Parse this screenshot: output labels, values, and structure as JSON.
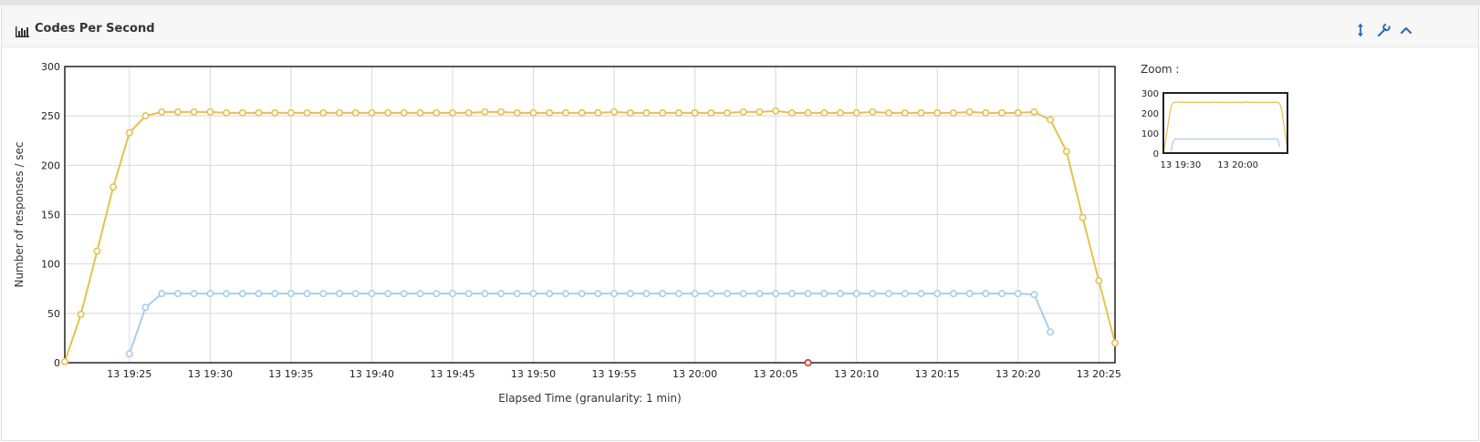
{
  "panel": {
    "title": "Codes Per Second",
    "icons": [
      "bar-chart-icon",
      "expand-vertical-icon",
      "wrench-icon",
      "chevron-up-icon"
    ]
  },
  "zoom": {
    "label": "Zoom :"
  },
  "colors": {
    "series_2xx": "#e8c050",
    "series_other": "#a9cde9",
    "marker_red": "#d03030",
    "frame": "#222222",
    "grid": "#d8d8d8"
  },
  "chart_data": {
    "type": "line",
    "xlabel": "Elapsed Time (granularity: 1 min)",
    "ylabel": "Number of responses / sec",
    "ylim": [
      0,
      300
    ],
    "yticks": [
      0,
      50,
      100,
      150,
      200,
      250,
      300
    ],
    "xlim": [
      "13 19:21",
      "13 20:26"
    ],
    "xticks": [
      "13 19:25",
      "13 19:30",
      "13 19:35",
      "13 19:40",
      "13 19:45",
      "13 19:50",
      "13 19:55",
      "13 20:00",
      "13 20:05",
      "13 20:10",
      "13 20:15",
      "13 20:20",
      "13 20:25"
    ],
    "grid": true,
    "series": [
      {
        "color": "#e8c050",
        "x": [
          "13 19:21",
          "13 19:22",
          "13 19:23",
          "13 19:24",
          "13 19:25",
          "13 19:26",
          "13 19:27",
          "13 19:28",
          "13 19:29",
          "13 19:30",
          "13 19:31",
          "13 19:32",
          "13 19:33",
          "13 19:34",
          "13 19:35",
          "13 19:36",
          "13 19:37",
          "13 19:38",
          "13 19:39",
          "13 19:40",
          "13 19:41",
          "13 19:42",
          "13 19:43",
          "13 19:44",
          "13 19:45",
          "13 19:46",
          "13 19:47",
          "13 19:48",
          "13 19:49",
          "13 19:50",
          "13 19:51",
          "13 19:52",
          "13 19:53",
          "13 19:54",
          "13 19:55",
          "13 19:56",
          "13 19:57",
          "13 19:58",
          "13 19:59",
          "13 20:00",
          "13 20:01",
          "13 20:02",
          "13 20:03",
          "13 20:04",
          "13 20:05",
          "13 20:06",
          "13 20:07",
          "13 20:08",
          "13 20:09",
          "13 20:10",
          "13 20:11",
          "13 20:12",
          "13 20:13",
          "13 20:14",
          "13 20:15",
          "13 20:16",
          "13 20:17",
          "13 20:18",
          "13 20:19",
          "13 20:20",
          "13 20:21",
          "13 20:22",
          "13 20:23",
          "13 20:24",
          "13 20:25",
          "13 20:26"
        ],
        "values": [
          1,
          49,
          113,
          178,
          233,
          250,
          254,
          254,
          254,
          254,
          253,
          253,
          253,
          253,
          253,
          253,
          253,
          253,
          253,
          253,
          253,
          253,
          253,
          253,
          253,
          253,
          254,
          254,
          253,
          253,
          253,
          253,
          253,
          253,
          254,
          253,
          253,
          253,
          253,
          253,
          253,
          253,
          254,
          254,
          255,
          253,
          253,
          253,
          253,
          253,
          254,
          253,
          253,
          253,
          253,
          253,
          254,
          253,
          253,
          253,
          254,
          246,
          214,
          147,
          83,
          20
        ]
      },
      {
        "color": "#a9cde9",
        "x": [
          "13 19:25",
          "13 19:26",
          "13 19:27",
          "13 19:28",
          "13 19:29",
          "13 19:30",
          "13 19:31",
          "13 19:32",
          "13 19:33",
          "13 19:34",
          "13 19:35",
          "13 19:36",
          "13 19:37",
          "13 19:38",
          "13 19:39",
          "13 19:40",
          "13 19:41",
          "13 19:42",
          "13 19:43",
          "13 19:44",
          "13 19:45",
          "13 19:46",
          "13 19:47",
          "13 19:48",
          "13 19:49",
          "13 19:50",
          "13 19:51",
          "13 19:52",
          "13 19:53",
          "13 19:54",
          "13 19:55",
          "13 19:56",
          "13 19:57",
          "13 19:58",
          "13 19:59",
          "13 20:00",
          "13 20:01",
          "13 20:02",
          "13 20:03",
          "13 20:04",
          "13 20:05",
          "13 20:06",
          "13 20:07",
          "13 20:08",
          "13 20:09",
          "13 20:10",
          "13 20:11",
          "13 20:12",
          "13 20:13",
          "13 20:14",
          "13 20:15",
          "13 20:16",
          "13 20:17",
          "13 20:18",
          "13 20:19",
          "13 20:20",
          "13 20:21",
          "13 20:22"
        ],
        "values": [
          9,
          56,
          70,
          70,
          70,
          70,
          70,
          70,
          70,
          70,
          70,
          70,
          70,
          70,
          70,
          70,
          70,
          70,
          70,
          70,
          70,
          70,
          70,
          70,
          70,
          70,
          70,
          70,
          70,
          70,
          70,
          70,
          70,
          70,
          70,
          70,
          70,
          70,
          70,
          70,
          70,
          70,
          70,
          70,
          70,
          70,
          70,
          70,
          70,
          70,
          70,
          70,
          70,
          70,
          70,
          70,
          69,
          31
        ]
      },
      {
        "color": "#d03030",
        "x": [
          "13 20:07"
        ],
        "values": [
          0
        ]
      }
    ]
  },
  "zoom_chart": {
    "yticks": [
      0,
      100,
      200,
      300
    ],
    "xticks": [
      "13 19:30",
      "13 20:00"
    ]
  }
}
